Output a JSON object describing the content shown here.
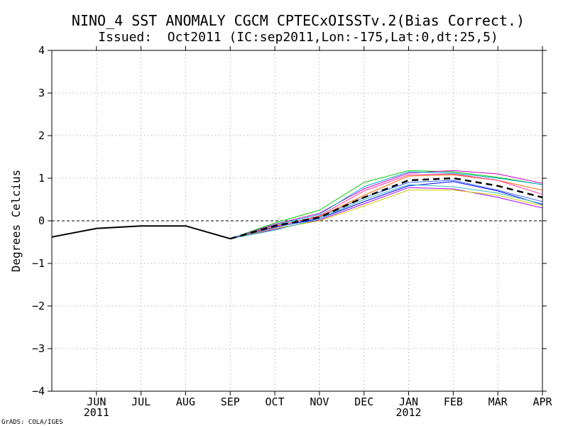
{
  "chart_data": {
    "type": "line",
    "title": "NINO_4 SST ANOMALY CGCM CPTECxOISSTv.2(Bias Correct.)",
    "subtitle": "Issued:  Oct2011 (IC:sep2011,Lon:-175,Lat:0,dt:25,5)",
    "ylabel": "Degrees Celcius",
    "xlabel": "",
    "credit": "GrADS: COLA/IGES",
    "ylim": [
      -4,
      4
    ],
    "yticks": [
      "4",
      "3",
      "2",
      "1",
      "0",
      "−1",
      "−2",
      "−3",
      "−4"
    ],
    "ytick_values": [
      4,
      3,
      2,
      1,
      0,
      -1,
      -2,
      -3,
      -4
    ],
    "x_months": [
      "JUN",
      "JUL",
      "AUG",
      "SEP",
      "OCT",
      "NOV",
      "DEC",
      "JAN",
      "FEB",
      "MAR",
      "APR"
    ],
    "x_month_index": [
      1,
      2,
      3,
      4,
      5,
      6,
      7,
      8,
      9,
      10,
      11
    ],
    "x_years": [
      {
        "label": "2011",
        "index": 1
      },
      {
        "label": "2012",
        "index": 8
      }
    ],
    "xlim": [
      0,
      11
    ],
    "zero_line": "dashed",
    "grid": "dotted",
    "observed": {
      "name": "Observed",
      "color": "#000000",
      "x": [
        0,
        1,
        2,
        3,
        4
      ],
      "values": [
        -0.38,
        -0.18,
        -0.12,
        -0.12,
        -0.42
      ]
    },
    "ensemble_mean": {
      "name": "Ensemble mean",
      "color": "#000000",
      "x": [
        4,
        5,
        6,
        7,
        8,
        9,
        10,
        11
      ],
      "values": [
        -0.42,
        -0.12,
        0.08,
        0.55,
        0.95,
        1.0,
        0.82,
        0.55
      ]
    },
    "members": [
      {
        "color": "#00cc00",
        "x": [
          4,
          5,
          6,
          7,
          8,
          9,
          10,
          11
        ],
        "values": [
          -0.42,
          -0.05,
          0.25,
          0.9,
          1.18,
          1.15,
          1.02,
          0.85
        ]
      },
      {
        "color": "#cc00cc",
        "x": [
          4,
          5,
          6,
          7,
          8,
          9,
          10,
          11
        ],
        "values": [
          -0.42,
          -0.08,
          0.18,
          0.75,
          1.12,
          1.18,
          1.1,
          0.88
        ]
      },
      {
        "color": "#00aacc",
        "x": [
          4,
          5,
          6,
          7,
          8,
          9,
          10,
          11
        ],
        "values": [
          -0.42,
          -0.1,
          0.15,
          0.8,
          1.15,
          1.12,
          1.0,
          0.85
        ]
      },
      {
        "color": "#ff6600",
        "x": [
          4,
          5,
          6,
          7,
          8,
          9,
          10,
          11
        ],
        "values": [
          -0.42,
          -0.12,
          0.1,
          0.6,
          1.05,
          1.08,
          0.95,
          0.72
        ]
      },
      {
        "color": "#0000ff",
        "x": [
          4,
          5,
          6,
          7,
          8,
          9,
          10,
          11
        ],
        "values": [
          -0.42,
          -0.15,
          0.05,
          0.45,
          0.82,
          0.92,
          0.7,
          0.38
        ]
      },
      {
        "color": "#aa00ff",
        "x": [
          4,
          5,
          6,
          7,
          8,
          9,
          10,
          11
        ],
        "values": [
          -0.42,
          -0.2,
          0.02,
          0.4,
          0.78,
          0.75,
          0.55,
          0.3
        ]
      },
      {
        "color": "#cccc00",
        "x": [
          4,
          5,
          6,
          7,
          8,
          9,
          10,
          11
        ],
        "values": [
          -0.42,
          -0.18,
          0.0,
          0.35,
          0.72,
          0.72,
          0.6,
          0.35
        ]
      },
      {
        "color": "#ff3399",
        "x": [
          4,
          5,
          6,
          7,
          8,
          9,
          10,
          11
        ],
        "values": [
          -0.42,
          -0.14,
          0.12,
          0.7,
          1.08,
          1.1,
          0.95,
          0.62
        ]
      },
      {
        "color": "#33bbbb",
        "x": [
          4,
          5,
          6,
          7,
          8,
          9,
          10,
          11
        ],
        "values": [
          -0.42,
          -0.22,
          0.05,
          0.5,
          0.85,
          0.8,
          0.65,
          0.4
        ]
      },
      {
        "color": "#3366ff",
        "x": [
          4,
          5,
          6,
          7,
          8,
          9,
          10,
          11
        ],
        "values": [
          -0.42,
          -0.16,
          0.08,
          0.55,
          0.9,
          0.95,
          0.72,
          0.45
        ]
      }
    ]
  }
}
